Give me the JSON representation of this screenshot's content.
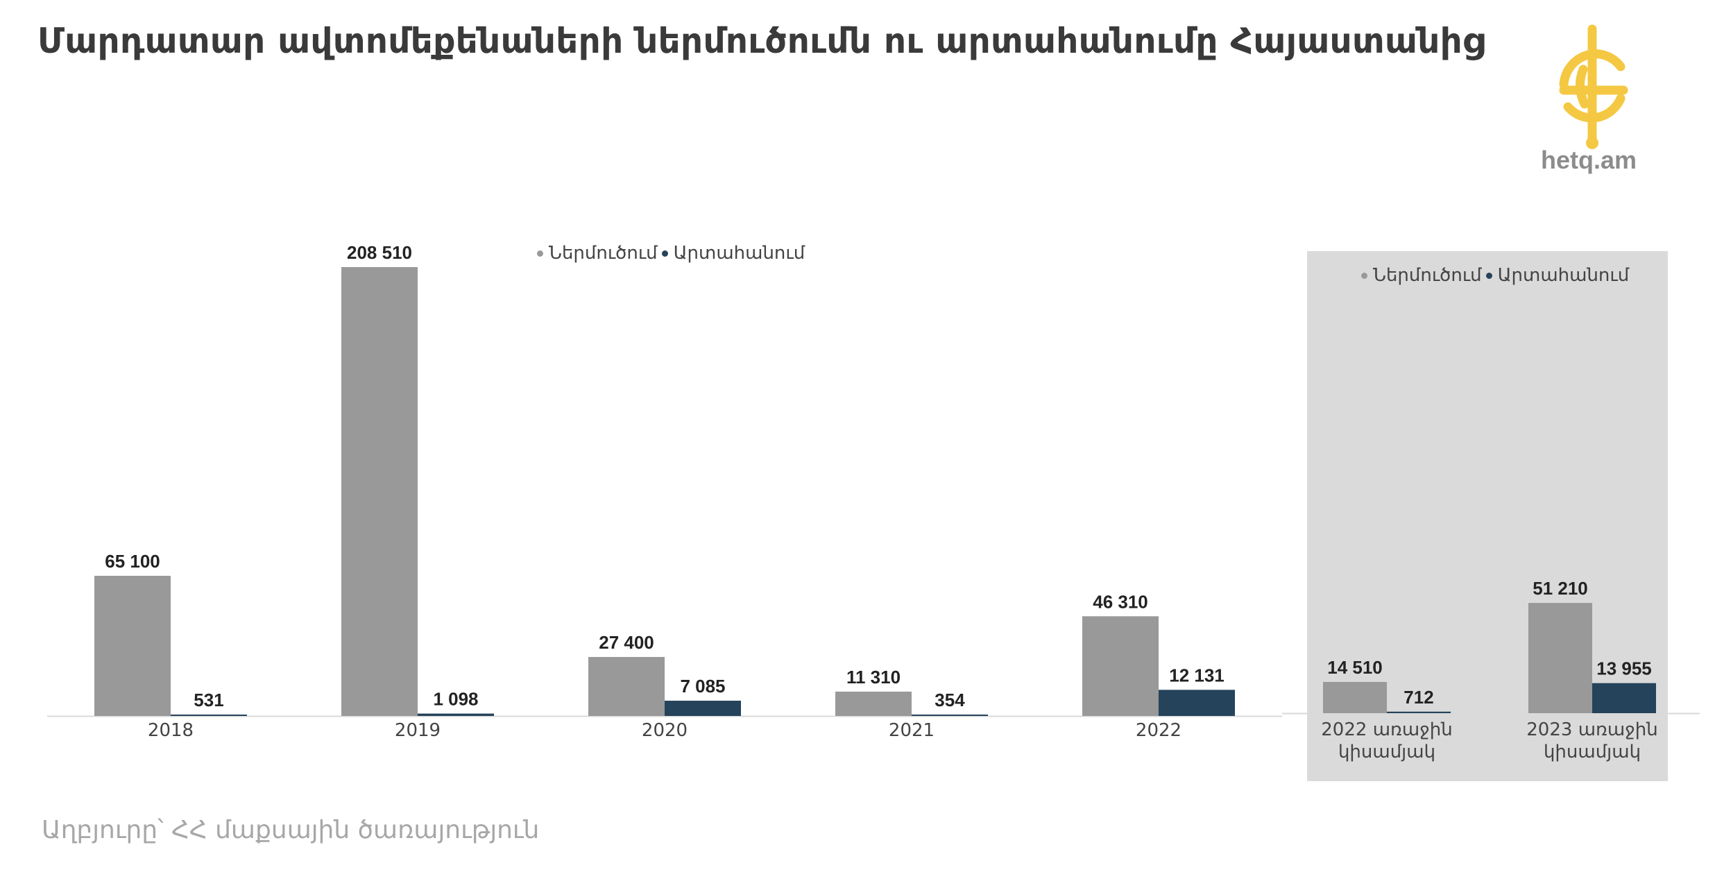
{
  "title": "Մարդատար ավտոմեքենաների ներմուծումն ու արտահանումը Հայաստանից",
  "logo": {
    "text": "hetq.am",
    "color": "#F4C842"
  },
  "source": "Աղբյուրը՝ ՀՀ մաքսային ծառայություն",
  "colors": {
    "import": "#999999",
    "export": "#25435A",
    "panel_bg": "#DADADA",
    "axis": "#D9D9D9"
  },
  "legend": [
    {
      "label": "Ներմուծում",
      "color": "#999999"
    },
    {
      "label": "Արտահանում",
      "color": "#25435A"
    }
  ],
  "chart_data": [
    {
      "type": "bar",
      "title": "",
      "categories": [
        "2018",
        "2019",
        "2020",
        "2021",
        "2022"
      ],
      "series": [
        {
          "name": "Ներմուծում",
          "values": [
            65100,
            208510,
            27400,
            11310,
            46310
          ],
          "labels": [
            "65 100",
            "208 510",
            "27 400",
            "11 310",
            "46 310"
          ]
        },
        {
          "name": "Արտահանում",
          "values": [
            531,
            1098,
            7085,
            354,
            12131
          ],
          "labels": [
            "531",
            "1 098",
            "7 085",
            "354",
            "12 131"
          ]
        }
      ],
      "legend_position": "top-center"
    },
    {
      "type": "bar",
      "title": "",
      "categories": [
        [
          "2022 առաջին",
          "կիսամյակ"
        ],
        [
          "2023 առաջին",
          "կիսամյակ"
        ]
      ],
      "series": [
        {
          "name": "Ներմուծում",
          "values": [
            14510,
            51210
          ],
          "labels": [
            "14 510",
            "51 210"
          ]
        },
        {
          "name": "Արտահանում",
          "values": [
            712,
            13955
          ],
          "labels": [
            "712",
            "13 955"
          ]
        }
      ],
      "legend_position": "top-center"
    }
  ]
}
